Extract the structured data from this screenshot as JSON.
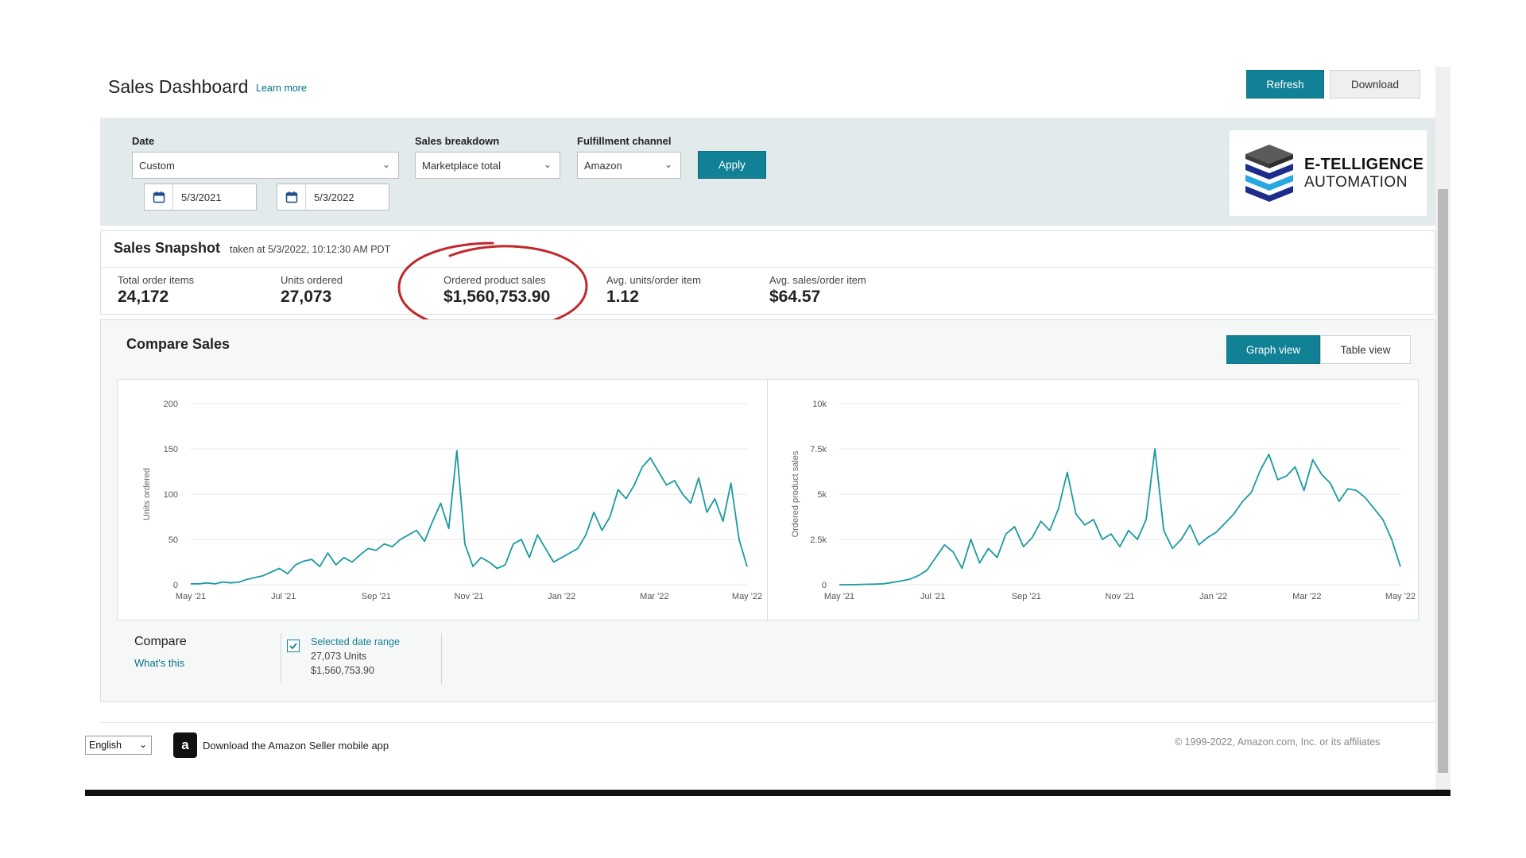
{
  "header": {
    "title": "Sales Dashboard",
    "learn_more": "Learn more",
    "refresh_label": "Refresh",
    "download_label": "Download"
  },
  "filters": {
    "date_label": "Date",
    "date_value": "Custom",
    "start_date": "5/3/2021",
    "end_date": "5/3/2022",
    "breakdown_label": "Sales breakdown",
    "breakdown_value": "Marketplace total",
    "channel_label": "Fulfillment channel",
    "channel_value": "Amazon",
    "apply_label": "Apply"
  },
  "logo": {
    "line1": "E-TELLIGENCE",
    "line2": "AUTOMATION",
    "colors": [
      "#1d2b8a",
      "#27a8e0",
      "#555555"
    ]
  },
  "snapshot": {
    "title": "Sales Snapshot",
    "taken": "taken at 5/3/2022, 10:12:30 AM PDT",
    "metrics": [
      {
        "label": "Total order items",
        "value": "24,172"
      },
      {
        "label": "Units ordered",
        "value": "27,073"
      },
      {
        "label": "Ordered product sales",
        "value": "$1,560,753.90"
      },
      {
        "label": "Avg. units/order item",
        "value": "1.12"
      },
      {
        "label": "Avg. sales/order item",
        "value": "$64.57"
      }
    ],
    "highlight_color": "#c0282d"
  },
  "compare": {
    "title": "Compare Sales",
    "graph_view": "Graph view",
    "table_view": "Table view",
    "compare_label": "Compare",
    "whats_this": "What's this",
    "range_label": "Selected date range",
    "range_units": "27,073 Units",
    "range_sales": "$1,560,753.90"
  },
  "chart_data": [
    {
      "type": "line",
      "ylabel": "Units ordered",
      "ylim": [
        0,
        200
      ],
      "yticks": [
        "0",
        "50",
        "100",
        "150",
        "200"
      ],
      "xticks": [
        "May '21",
        "Jul '21",
        "Sep '21",
        "Nov '21",
        "Jan '22",
        "Mar '22",
        "May '22"
      ],
      "color": "#1a9aa0",
      "series": [
        {
          "values": [
            1,
            1,
            2,
            1,
            3,
            2,
            3,
            6,
            8,
            10,
            14,
            18,
            12,
            22,
            26,
            28,
            20,
            35,
            22,
            30,
            25,
            33,
            40,
            38,
            45,
            42,
            50,
            55,
            60,
            48,
            70,
            90,
            62,
            148,
            45,
            20,
            30,
            25,
            18,
            22,
            45,
            50,
            30,
            55,
            40,
            25,
            30,
            35,
            40,
            55,
            80,
            60,
            75,
            105,
            95,
            110,
            130,
            140,
            125,
            110,
            115,
            100,
            90,
            118,
            80,
            95,
            70,
            112,
            50,
            20
          ]
        }
      ]
    },
    {
      "type": "line",
      "ylabel": "Ordered product sales",
      "ylim": [
        0,
        10000
      ],
      "yticks": [
        "0",
        "2.5k",
        "5k",
        "7.5k",
        "10k"
      ],
      "xticks": [
        "May '21",
        "Jul '21",
        "Sep '21",
        "Nov '21",
        "Jan '22",
        "Mar '22",
        "May '22"
      ],
      "color": "#1a9aa0",
      "series": [
        {
          "values": [
            0,
            0,
            10,
            20,
            30,
            50,
            120,
            200,
            300,
            500,
            800,
            1500,
            2200,
            1800,
            900,
            2500,
            1200,
            2000,
            1500,
            2800,
            3200,
            2100,
            2600,
            3500,
            3000,
            4200,
            6200,
            3900,
            3300,
            3600,
            2500,
            2800,
            2100,
            3000,
            2500,
            3600,
            7500,
            3000,
            2000,
            2500,
            3300,
            2200,
            2600,
            2900,
            3400,
            3900,
            4600,
            5100,
            6300,
            7200,
            5800,
            6000,
            6500,
            5200,
            6900,
            6100,
            5600,
            4600,
            5300,
            5200,
            4800,
            4200,
            3600,
            2500,
            1000
          ]
        }
      ]
    }
  ],
  "footer": {
    "language": "English",
    "app_text": "Download the Amazon Seller mobile app",
    "app_icon_letter": "a",
    "copyright": "© 1999-2022, Amazon.com, Inc. or its affiliates"
  }
}
